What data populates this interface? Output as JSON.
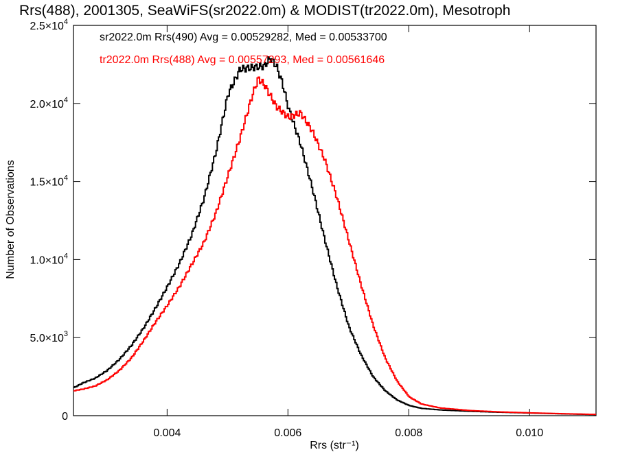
{
  "chart_data": {
    "type": "line",
    "title": "Rrs(488), 2001305, SeaWiFS(sr2022.0m) & MODIST(tr2022.0m), Mesotroph",
    "xlabel": "Rrs (str⁻¹)",
    "ylabel": "Number of Observations",
    "xlim": [
      0.00245,
      0.0111
    ],
    "ylim": [
      0,
      25000
    ],
    "x_ticks": [
      {
        "value": 0.004,
        "label": "0.004"
      },
      {
        "value": 0.006,
        "label": "0.006"
      },
      {
        "value": 0.008,
        "label": "0.008"
      },
      {
        "value": 0.01,
        "label": "0.010"
      }
    ],
    "y_ticks": [
      {
        "value": 0,
        "label": "0"
      },
      {
        "value": 5000,
        "label": "5.0×10",
        "exp": "3"
      },
      {
        "value": 10000,
        "label": "1.0×10",
        "exp": "4"
      },
      {
        "value": 15000,
        "label": "1.5×10",
        "exp": "4"
      },
      {
        "value": 20000,
        "label": "2.0×10",
        "exp": "4"
      },
      {
        "value": 25000,
        "label": "2.5×10",
        "exp": "4"
      }
    ],
    "grid": false,
    "legend_position": "top-left",
    "series": [
      {
        "name": "sr2022.0m Rrs(490) Avg = 0.00529282, Med = 0.00533700",
        "color": "#000000",
        "points": [
          [
            0.00245,
            1800
          ],
          [
            0.0026,
            2100
          ],
          [
            0.0028,
            2400
          ],
          [
            0.003,
            2900
          ],
          [
            0.0032,
            3600
          ],
          [
            0.0034,
            4500
          ],
          [
            0.0036,
            5600
          ],
          [
            0.0038,
            6900
          ],
          [
            0.004,
            8300
          ],
          [
            0.0042,
            9800
          ],
          [
            0.0044,
            11600
          ],
          [
            0.0046,
            13900
          ],
          [
            0.0048,
            16900
          ],
          [
            0.005,
            20600
          ],
          [
            0.0052,
            22200
          ],
          [
            0.0054,
            22300
          ],
          [
            0.0056,
            22400
          ],
          [
            0.0057,
            22900
          ],
          [
            0.0058,
            22400
          ],
          [
            0.0059,
            21300
          ],
          [
            0.006,
            19700
          ],
          [
            0.0062,
            17400
          ],
          [
            0.0064,
            14500
          ],
          [
            0.0066,
            11300
          ],
          [
            0.0068,
            8300
          ],
          [
            0.007,
            5700
          ],
          [
            0.0072,
            3900
          ],
          [
            0.0074,
            2500
          ],
          [
            0.0076,
            1600
          ],
          [
            0.0078,
            1000
          ],
          [
            0.008,
            650
          ],
          [
            0.0082,
            470
          ],
          [
            0.0085,
            370
          ],
          [
            0.009,
            280
          ],
          [
            0.0095,
            220
          ],
          [
            0.01,
            170
          ],
          [
            0.0105,
            120
          ],
          [
            0.0111,
            70
          ]
        ]
      },
      {
        "name": "tr2022.0m Rrs(488) Avg = 0.00557293, Med = 0.00561646",
        "color": "#ff0000",
        "points": [
          [
            0.00245,
            1600
          ],
          [
            0.0026,
            1700
          ],
          [
            0.0028,
            1900
          ],
          [
            0.003,
            2300
          ],
          [
            0.0032,
            2900
          ],
          [
            0.0034,
            3700
          ],
          [
            0.0036,
            4800
          ],
          [
            0.0038,
            6000
          ],
          [
            0.004,
            7100
          ],
          [
            0.0042,
            8300
          ],
          [
            0.0044,
            9700
          ],
          [
            0.0046,
            11100
          ],
          [
            0.0048,
            13000
          ],
          [
            0.005,
            15400
          ],
          [
            0.0052,
            17800
          ],
          [
            0.0054,
            20500
          ],
          [
            0.0055,
            21600
          ],
          [
            0.0056,
            21200
          ],
          [
            0.0058,
            19800
          ],
          [
            0.006,
            19100
          ],
          [
            0.0062,
            19400
          ],
          [
            0.0064,
            18200
          ],
          [
            0.0066,
            16400
          ],
          [
            0.0068,
            14000
          ],
          [
            0.007,
            11200
          ],
          [
            0.0072,
            8400
          ],
          [
            0.0074,
            5800
          ],
          [
            0.0076,
            3700
          ],
          [
            0.0078,
            2200
          ],
          [
            0.008,
            1200
          ],
          [
            0.0082,
            750
          ],
          [
            0.0085,
            500
          ],
          [
            0.009,
            330
          ],
          [
            0.0095,
            240
          ],
          [
            0.01,
            180
          ],
          [
            0.0105,
            130
          ],
          [
            0.0111,
            80
          ]
        ]
      }
    ]
  }
}
